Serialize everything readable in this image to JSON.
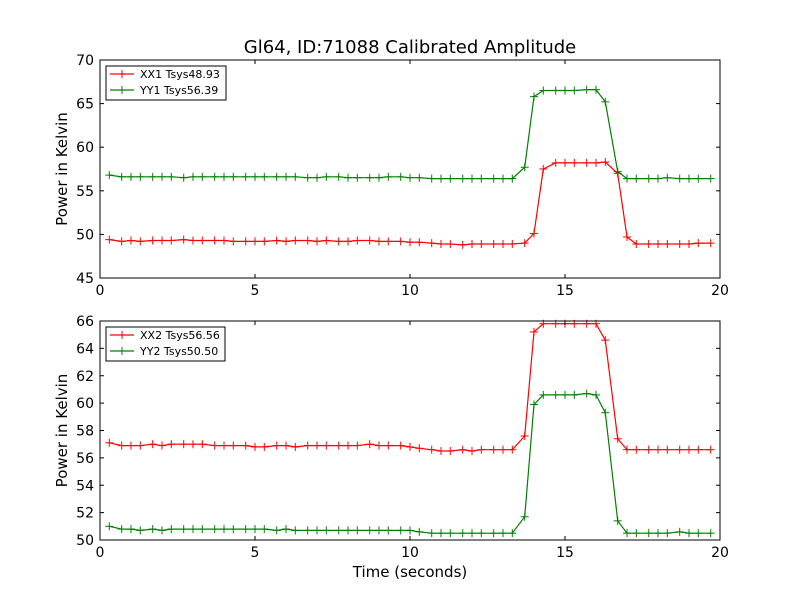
{
  "figure": {
    "title": "Gl64, ID:71088 Calibrated Amplitude",
    "xlabel": "Time (seconds)"
  },
  "chart_data": [
    {
      "type": "line",
      "title": "Gl64, ID:71088 Calibrated Amplitude",
      "xlabel": "",
      "ylabel": "Power in Kelvin",
      "xlim": [
        0,
        20
      ],
      "ylim": [
        45,
        70
      ],
      "xticks": [
        0,
        5,
        10,
        15,
        20
      ],
      "yticks": [
        45,
        50,
        55,
        60,
        65,
        70
      ],
      "grid": false,
      "legend_position": "top-left",
      "x": [
        0.3,
        0.7,
        1.0,
        1.3,
        1.7,
        2.0,
        2.3,
        2.7,
        3.0,
        3.3,
        3.7,
        4.0,
        4.3,
        4.7,
        5.0,
        5.3,
        5.7,
        6.0,
        6.3,
        6.7,
        7.0,
        7.3,
        7.7,
        8.0,
        8.3,
        8.7,
        9.0,
        9.3,
        9.7,
        10.0,
        10.3,
        10.7,
        11.0,
        11.3,
        11.7,
        12.0,
        12.3,
        12.7,
        13.0,
        13.3,
        13.7,
        14.0,
        14.3,
        14.7,
        15.0,
        15.3,
        15.7,
        16.0,
        16.3,
        16.7,
        17.0,
        17.3,
        17.7,
        18.0,
        18.3,
        18.7,
        19.0,
        19.3,
        19.7
      ],
      "series": [
        {
          "name": "XX1 Tsys48.93",
          "color": "#ff0000",
          "values": [
            49.4,
            49.2,
            49.3,
            49.2,
            49.3,
            49.3,
            49.3,
            49.4,
            49.3,
            49.3,
            49.3,
            49.3,
            49.2,
            49.2,
            49.2,
            49.2,
            49.3,
            49.2,
            49.3,
            49.3,
            49.2,
            49.3,
            49.2,
            49.2,
            49.3,
            49.3,
            49.2,
            49.2,
            49.2,
            49.1,
            49.1,
            49.0,
            48.9,
            48.9,
            48.8,
            48.9,
            48.9,
            48.9,
            48.9,
            48.9,
            49.0,
            50.1,
            57.5,
            58.2,
            58.2,
            58.2,
            58.2,
            58.2,
            58.3,
            57.0,
            49.7,
            48.9,
            48.9,
            48.9,
            48.9,
            48.9,
            48.9,
            49.0,
            49.0
          ]
        },
        {
          "name": "YY1 Tsys56.39",
          "color": "#008000",
          "values": [
            56.8,
            56.6,
            56.6,
            56.6,
            56.6,
            56.6,
            56.6,
            56.5,
            56.6,
            56.6,
            56.6,
            56.6,
            56.6,
            56.6,
            56.6,
            56.6,
            56.6,
            56.6,
            56.6,
            56.5,
            56.5,
            56.6,
            56.6,
            56.5,
            56.5,
            56.5,
            56.5,
            56.6,
            56.6,
            56.5,
            56.5,
            56.4,
            56.4,
            56.4,
            56.4,
            56.4,
            56.4,
            56.4,
            56.4,
            56.4,
            57.7,
            65.8,
            66.5,
            66.5,
            66.5,
            66.5,
            66.6,
            66.6,
            65.2,
            57.2,
            56.4,
            56.4,
            56.4,
            56.4,
            56.5,
            56.4,
            56.4,
            56.4,
            56.4
          ]
        }
      ]
    },
    {
      "type": "line",
      "title": "",
      "xlabel": "Time (seconds)",
      "ylabel": "Power in Kelvin",
      "xlim": [
        0,
        20
      ],
      "ylim": [
        50,
        66
      ],
      "xticks": [
        0,
        5,
        10,
        15,
        20
      ],
      "yticks": [
        50,
        52,
        54,
        56,
        58,
        60,
        62,
        64,
        66
      ],
      "grid": false,
      "legend_position": "top-left",
      "x": [
        0.3,
        0.7,
        1.0,
        1.3,
        1.7,
        2.0,
        2.3,
        2.7,
        3.0,
        3.3,
        3.7,
        4.0,
        4.3,
        4.7,
        5.0,
        5.3,
        5.7,
        6.0,
        6.3,
        6.7,
        7.0,
        7.3,
        7.7,
        8.0,
        8.3,
        8.7,
        9.0,
        9.3,
        9.7,
        10.0,
        10.3,
        10.7,
        11.0,
        11.3,
        11.7,
        12.0,
        12.3,
        12.7,
        13.0,
        13.3,
        13.7,
        14.0,
        14.3,
        14.7,
        15.0,
        15.3,
        15.7,
        16.0,
        16.3,
        16.7,
        17.0,
        17.3,
        17.7,
        18.0,
        18.3,
        18.7,
        19.0,
        19.3,
        19.7
      ],
      "series": [
        {
          "name": "XX2 Tsys56.56",
          "color": "#ff0000",
          "values": [
            57.1,
            56.9,
            56.9,
            56.9,
            57.0,
            56.9,
            57.0,
            57.0,
            57.0,
            57.0,
            56.9,
            56.9,
            56.9,
            56.9,
            56.8,
            56.8,
            56.9,
            56.9,
            56.8,
            56.9,
            56.9,
            56.9,
            56.9,
            56.9,
            56.9,
            57.0,
            56.9,
            56.9,
            56.9,
            56.8,
            56.7,
            56.6,
            56.5,
            56.5,
            56.6,
            56.5,
            56.6,
            56.6,
            56.6,
            56.6,
            57.6,
            65.2,
            65.8,
            65.8,
            65.8,
            65.8,
            65.8,
            65.8,
            64.6,
            57.4,
            56.6,
            56.6,
            56.6,
            56.6,
            56.6,
            56.6,
            56.6,
            56.6,
            56.6
          ]
        },
        {
          "name": "YY2 Tsys50.50",
          "color": "#008000",
          "values": [
            51.0,
            50.8,
            50.8,
            50.7,
            50.8,
            50.7,
            50.8,
            50.8,
            50.8,
            50.8,
            50.8,
            50.8,
            50.8,
            50.8,
            50.8,
            50.8,
            50.7,
            50.8,
            50.7,
            50.7,
            50.7,
            50.7,
            50.7,
            50.7,
            50.7,
            50.7,
            50.7,
            50.7,
            50.7,
            50.7,
            50.6,
            50.5,
            50.5,
            50.5,
            50.5,
            50.5,
            50.5,
            50.5,
            50.5,
            50.5,
            51.7,
            59.9,
            60.6,
            60.6,
            60.6,
            60.6,
            60.7,
            60.6,
            59.3,
            51.4,
            50.5,
            50.5,
            50.5,
            50.5,
            50.5,
            50.6,
            50.5,
            50.5,
            50.5
          ]
        }
      ]
    }
  ]
}
